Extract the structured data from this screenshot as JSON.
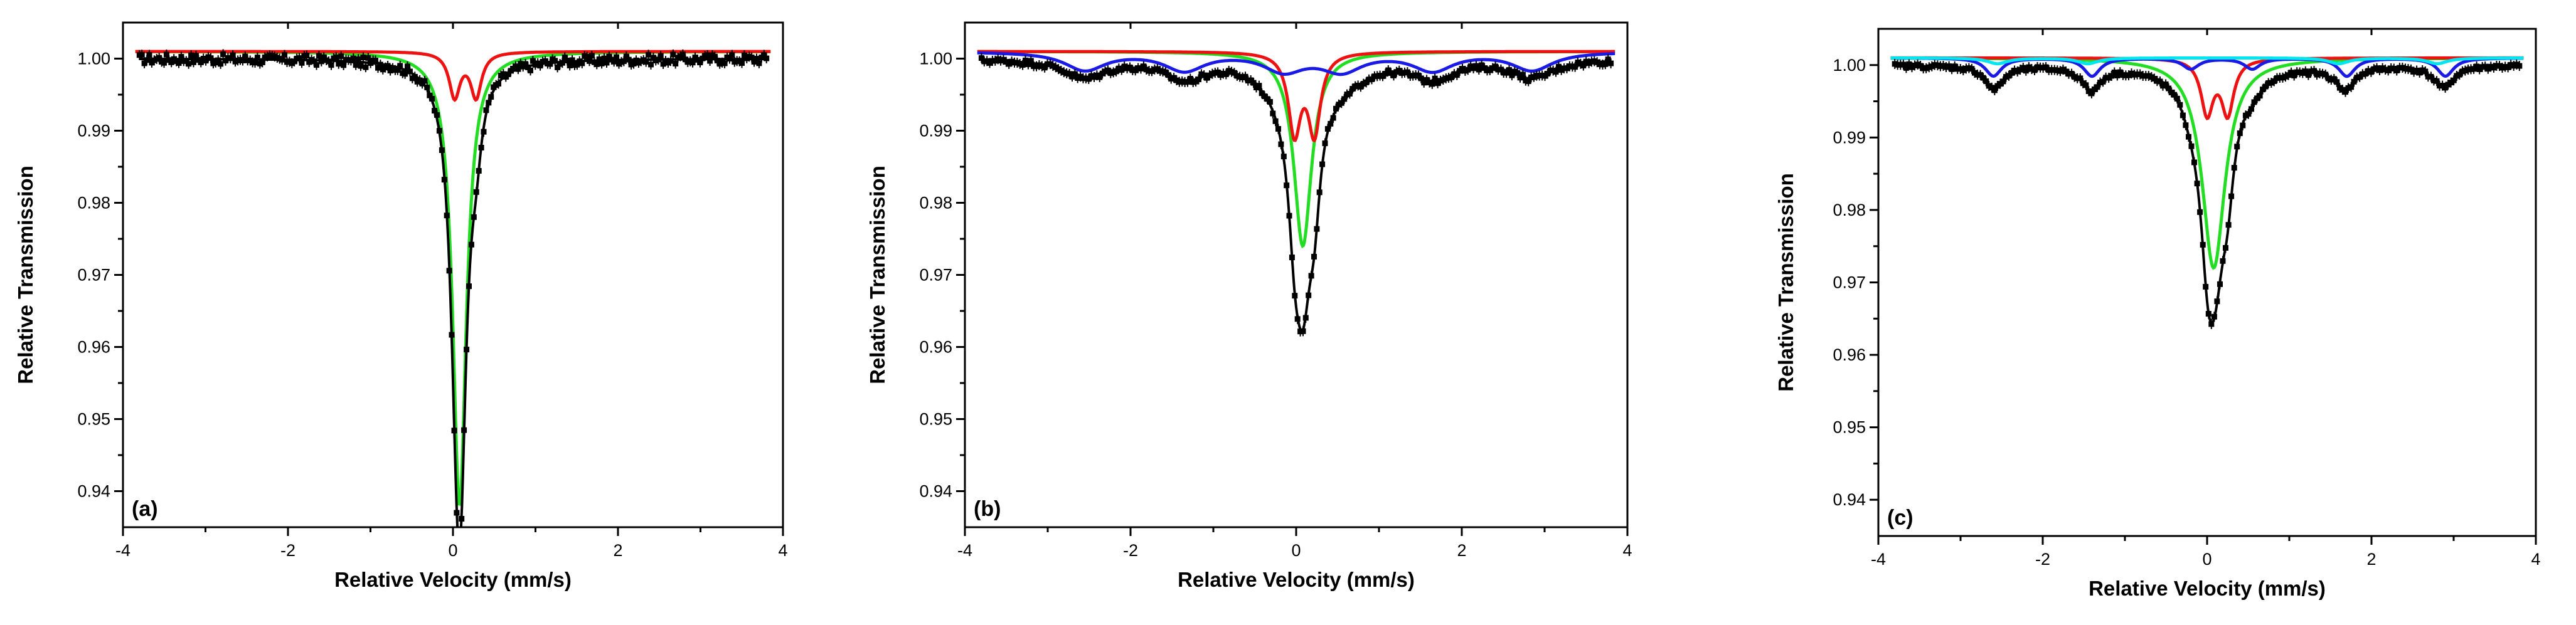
{
  "figure": {
    "description_free": true
  },
  "chart_data": [
    {
      "type": "line",
      "panel_label": "(a)",
      "xlabel": "Relative Velocity (mm/s)",
      "ylabel": "Relative Transmission",
      "xlim": [
        -4,
        4
      ],
      "ylim": [
        0.935,
        1.005
      ],
      "xticks": [
        -4,
        -2,
        0,
        2,
        4
      ],
      "xtick_labels": [
        "-4",
        "-2",
        "0",
        "2",
        "4"
      ],
      "yticks": [
        0.94,
        0.95,
        0.96,
        0.97,
        0.98,
        0.99,
        1.0
      ],
      "ytick_labels": [
        "0.94",
        "0.95",
        "0.96",
        "0.97",
        "0.98",
        "0.99",
        "1.00"
      ],
      "grid": false,
      "data_points": {
        "x_range": [
          -3.8,
          3.8
        ],
        "n": 256,
        "noise": 0.0007,
        "color": "#000000"
      },
      "total_fit": {
        "color": "#000000"
      },
      "series": [
        {
          "name": "green doublet",
          "color": "#22dd22",
          "baseline": 1.001,
          "lines": [
            {
              "center": 0.08,
              "depth": 0.063,
              "width": 0.1
            }
          ]
        },
        {
          "name": "red doublet",
          "color": "#ee1111",
          "baseline": 1.001,
          "lines": [
            {
              "center": 0.02,
              "depth": 0.0062,
              "width": 0.08
            },
            {
              "center": 0.28,
              "depth": 0.0062,
              "width": 0.08
            }
          ]
        }
      ]
    },
    {
      "type": "line",
      "panel_label": "(b)",
      "xlabel": "Relative Velocity (mm/s)",
      "ylabel": "Relative Transmission",
      "xlim": [
        -4,
        4
      ],
      "ylim": [
        0.935,
        1.005
      ],
      "xticks": [
        -4,
        -2,
        0,
        2,
        4
      ],
      "xtick_labels": [
        "-4",
        "-2",
        "0",
        "2",
        "4"
      ],
      "yticks": [
        0.94,
        0.95,
        0.96,
        0.97,
        0.98,
        0.99,
        1.0
      ],
      "ytick_labels": [
        "0.94",
        "0.95",
        "0.96",
        "0.97",
        "0.98",
        "0.99",
        "1.00"
      ],
      "grid": false,
      "data_points": {
        "x_range": [
          -3.8,
          3.8
        ],
        "n": 230,
        "noise": 0.0004,
        "color": "#000000"
      },
      "total_fit": {
        "color": "#000000"
      },
      "series": [
        {
          "name": "green doublet",
          "color": "#22dd22",
          "baseline": 1.001,
          "lines": [
            {
              "center": 0.08,
              "depth": 0.027,
              "width": 0.13
            }
          ]
        },
        {
          "name": "red doublet",
          "color": "#ee1111",
          "baseline": 1.001,
          "lines": [
            {
              "center": -0.02,
              "depth": 0.011,
              "width": 0.09
            },
            {
              "center": 0.22,
              "depth": 0.011,
              "width": 0.09
            }
          ]
        },
        {
          "name": "blue sextet",
          "color": "#1a1ae6",
          "baseline": 1.001,
          "lines": [
            {
              "center": -2.55,
              "depth": 0.0025,
              "width": 0.3
            },
            {
              "center": -1.35,
              "depth": 0.0025,
              "width": 0.3
            },
            {
              "center": -0.15,
              "depth": 0.0025,
              "width": 0.3
            },
            {
              "center": 0.55,
              "depth": 0.0025,
              "width": 0.3
            },
            {
              "center": 1.65,
              "depth": 0.0025,
              "width": 0.3
            },
            {
              "center": 2.85,
              "depth": 0.0025,
              "width": 0.3
            }
          ]
        }
      ]
    },
    {
      "type": "line",
      "panel_label": "(c)",
      "xlabel": "Relative Velocity (mm/s)",
      "ylabel": "Relative Transmission",
      "xlim": [
        -4,
        4
      ],
      "ylim": [
        0.935,
        1.005
      ],
      "xticks": [
        -4,
        -2,
        0,
        2,
        4
      ],
      "xtick_labels": [
        "-4",
        "-2",
        "0",
        "2",
        "4"
      ],
      "yticks": [
        0.94,
        0.95,
        0.96,
        0.97,
        0.98,
        0.99,
        1.0
      ],
      "ytick_labels": [
        "0.94",
        "0.95",
        "0.96",
        "0.97",
        "0.98",
        "0.99",
        "1.00"
      ],
      "grid": false,
      "data_points": {
        "x_range": [
          -3.8,
          3.8
        ],
        "n": 220,
        "noise": 0.0003,
        "color": "#000000"
      },
      "total_fit": {
        "color": "#000000"
      },
      "series": [
        {
          "name": "green doublet",
          "color": "#22dd22",
          "baseline": 1.001,
          "lines": [
            {
              "center": 0.08,
              "depth": 0.029,
              "width": 0.17
            }
          ]
        },
        {
          "name": "red doublet",
          "color": "#ee1111",
          "baseline": 1.001,
          "lines": [
            {
              "center": 0.0,
              "depth": 0.0075,
              "width": 0.09
            },
            {
              "center": 0.25,
              "depth": 0.0075,
              "width": 0.09
            }
          ]
        },
        {
          "name": "blue sextet",
          "color": "#1a1ae6",
          "baseline": 1.001,
          "lines": [
            {
              "center": -2.6,
              "depth": 0.0025,
              "width": 0.12
            },
            {
              "center": -1.4,
              "depth": 0.0025,
              "width": 0.12
            },
            {
              "center": -0.2,
              "depth": 0.0015,
              "width": 0.12
            },
            {
              "center": 0.55,
              "depth": 0.0015,
              "width": 0.12
            },
            {
              "center": 1.7,
              "depth": 0.0025,
              "width": 0.12
            },
            {
              "center": 2.9,
              "depth": 0.0025,
              "width": 0.12
            }
          ]
        },
        {
          "name": "cyan sextet",
          "color": "#00e5ee",
          "baseline": 1.001,
          "lines": [
            {
              "center": -2.55,
              "depth": 0.0008,
              "width": 0.15
            },
            {
              "center": -1.45,
              "depth": 0.0008,
              "width": 0.15
            },
            {
              "center": 1.6,
              "depth": 0.0008,
              "width": 0.15
            },
            {
              "center": 2.8,
              "depth": 0.0008,
              "width": 0.15
            }
          ]
        }
      ]
    }
  ]
}
